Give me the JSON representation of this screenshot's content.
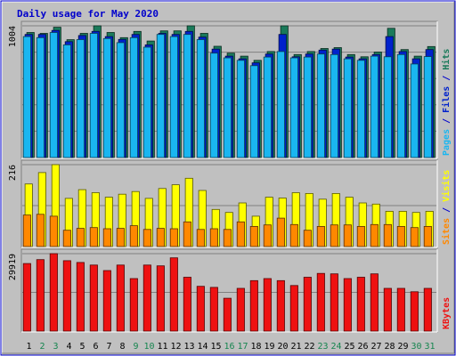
{
  "chart_data": {
    "title": "Daily usage for May 2020",
    "days": [
      "1",
      "2",
      "3",
      "4",
      "5",
      "6",
      "7",
      "8",
      "9",
      "10",
      "11",
      "12",
      "13",
      "14",
      "15",
      "16",
      "17",
      "18",
      "19",
      "20",
      "21",
      "22",
      "23",
      "24",
      "25",
      "26",
      "27",
      "28",
      "29",
      "30",
      "31"
    ],
    "weekend_days": [
      "2",
      "3",
      "9",
      "10",
      "16",
      "17",
      "23",
      "24",
      "30",
      "31"
    ],
    "colors": {
      "hits": "#1a7a5a",
      "files": "#0022cc",
      "pages": "#1ab6f0",
      "visits": "#ffff00",
      "sites": "#ff8800",
      "kbytes": "#ee1111",
      "title": "#0000cc",
      "weekend_label": "#16854f",
      "weekday_label": "#000000",
      "panel_bg": "#c0c0c0",
      "frame": "#0000cc"
    },
    "panels": [
      {
        "type": "bar",
        "max_label": "1004",
        "ymax": 1004,
        "side_labels": [
          {
            "text": "Pages",
            "color": "#1ab6f0"
          },
          {
            "text": " / ",
            "color": "#0000cc"
          },
          {
            "text": "Files",
            "color": "#0022cc"
          },
          {
            "text": " / ",
            "color": "#0000cc"
          },
          {
            "text": "Hits",
            "color": "#1a7a5a"
          }
        ],
        "series": [
          {
            "name": "Hits",
            "color": "#1a7a5a",
            "values": [
              953,
              946,
              993,
              898,
              946,
              1004,
              953,
              914,
              961,
              888,
              965,
              965,
              1004,
              946,
              848,
              796,
              773,
              741,
              808,
              1004,
              785,
              808,
              831,
              838,
              785,
              768,
              804,
              985,
              823,
              773,
              846
            ]
          },
          {
            "name": "Files",
            "color": "#0022cc",
            "values": [
              938,
              938,
              969,
              883,
              930,
              961,
              922,
              900,
              938,
              859,
              946,
              938,
              961,
              918,
              826,
              773,
              752,
              722,
              789,
              938,
              768,
              789,
              819,
              826,
              766,
              752,
              785,
              922,
              808,
              752,
              823
            ]
          },
          {
            "name": "Pages",
            "color": "#1ab6f0",
            "values": [
              922,
              914,
              953,
              859,
              899,
              946,
              907,
              876,
              914,
              841,
              938,
              922,
              938,
              899,
              796,
              760,
              741,
              700,
              766,
              808,
              760,
              766,
              789,
              785,
              752,
              741,
              773,
              768,
              785,
              713,
              769
            ]
          }
        ]
      },
      {
        "type": "bar",
        "max_label": "216",
        "ymax": 216,
        "side_labels": [
          {
            "text": "Sites",
            "color": "#ff8800"
          },
          {
            "text": " / ",
            "color": "#0000cc"
          },
          {
            "text": "Visits",
            "color": "#ffff00"
          }
        ],
        "series": [
          {
            "name": "Visits",
            "color": "#ffff00",
            "values": [
              165,
              195,
              216,
              127,
              150,
              142,
              130,
              138,
              145,
              127,
              153,
              163,
              180,
              148,
              98,
              90,
              115,
              80,
              130,
              128,
              142,
              140,
              125,
              140,
              130,
              115,
              112,
              93,
              93,
              90,
              93
            ]
          },
          {
            "name": "Sites",
            "color": "#ff8800",
            "values": [
              83,
              85,
              80,
              43,
              48,
              50,
              47,
              48,
              55,
              45,
              48,
              47,
              65,
              45,
              47,
              45,
              65,
              53,
              57,
              75,
              58,
              43,
              53,
              57,
              57,
              53,
              58,
              58,
              53,
              50,
              53
            ]
          }
        ]
      },
      {
        "type": "bar",
        "max_label": "29919",
        "ymax": 29919,
        "side_labels": [
          {
            "text": "KBytes",
            "color": "#ee1111"
          }
        ],
        "series": [
          {
            "name": "KBytes",
            "color": "#ee1111",
            "values": [
              26100,
              27600,
              29919,
              27200,
              26500,
              25500,
              23400,
              25500,
              20300,
              25500,
              25200,
              28300,
              20800,
              17300,
              16900,
              12700,
              16500,
              19500,
              20300,
              19500,
              17600,
              20800,
              22300,
              22100,
              20300,
              20800,
              22100,
              16500,
              16500,
              15200,
              16500
            ]
          }
        ]
      }
    ]
  }
}
